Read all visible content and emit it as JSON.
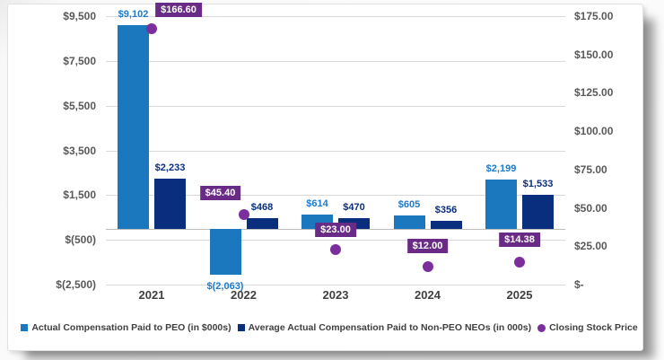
{
  "chart_data": {
    "type": "combo",
    "title": "",
    "categories": [
      "2021",
      "2022",
      "2023",
      "2024",
      "2025"
    ],
    "series": [
      {
        "name": "Actual Compensation Paid to PEO (in $000s)",
        "type": "bar",
        "axis": "left",
        "color": "#1B78BE",
        "label_color": "#1F7AC9",
        "values": [
          9102,
          -2063,
          614,
          605,
          2199
        ],
        "value_labels": [
          "$9,102",
          "$(2,063)",
          "$614",
          "$605",
          "$2,199"
        ]
      },
      {
        "name": "Average Actual Compensation Paid to Non-PEO NEOs (in 000s)",
        "type": "bar",
        "axis": "left",
        "color": "#0A2E7E",
        "label_color": "#0A2E7E",
        "values": [
          2233,
          468,
          470,
          356,
          1533
        ],
        "value_labels": [
          "$2,233",
          "$468",
          "$470",
          "$356",
          "$1,533"
        ]
      },
      {
        "name": "Closing Stock Price",
        "type": "scatter",
        "axis": "right",
        "color": "#7B2F9D",
        "label_bg": "#6A2B86",
        "label_text_color": "#FFFFFF",
        "values": [
          166.6,
          45.4,
          23.0,
          12.0,
          14.38
        ],
        "value_labels": [
          "$166.60",
          "$45.40",
          "$23.00",
          "$12.00",
          "$14.38"
        ],
        "label_offsets": [
          [
            30,
            -13
          ],
          [
            -26,
            -16
          ],
          [
            0,
            -14
          ],
          [
            0,
            -15
          ],
          [
            0,
            -17
          ]
        ]
      }
    ],
    "left_axis": {
      "min": -2500,
      "max": 9500,
      "tick_values": [
        9500,
        7500,
        5500,
        3500,
        1500,
        -500,
        -2500
      ],
      "tick_labels": [
        "$9,500",
        "$7,500",
        "$5,500",
        "$3,500",
        "$1,500",
        "$(500)",
        "$(2,500)"
      ]
    },
    "right_axis": {
      "min": 0,
      "max": 175,
      "tick_values": [
        175,
        150,
        125,
        100,
        75,
        50,
        25,
        0
      ],
      "tick_labels": [
        "$175.00",
        "$150.00",
        "$125.00",
        "$100.00",
        "$75.00",
        "$50.00",
        "$25.00",
        "$-"
      ]
    },
    "grid": true,
    "legend_position": "bottom",
    "colors": {
      "grid": "#D9D9D9",
      "zero_line": "#BDBDBD",
      "tick_text": "#595959",
      "category_text": "#404040",
      "card_background": "#FFFFFF"
    }
  }
}
